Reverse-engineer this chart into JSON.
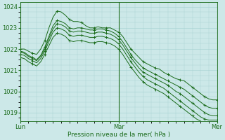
{
  "bg_color": "#cce8e8",
  "grid_color": "#aad4d4",
  "line_color": "#1a6b1a",
  "xlabel": "Pression niveau de la mer( hPa )",
  "xtick_labels": [
    "Lun",
    "Mar",
    "Mer"
  ],
  "xtick_positions": [
    0,
    24,
    48
  ],
  "ytick_values": [
    1019,
    1020,
    1021,
    1022,
    1023,
    1024
  ],
  "ylim": [
    1018.6,
    1024.2
  ],
  "xlim": [
    0,
    48
  ],
  "series": [
    {
      "x": [
        0,
        1,
        2,
        3,
        4,
        5,
        6,
        7,
        8,
        9,
        10,
        11,
        12,
        13,
        14,
        15,
        16,
        17,
        18,
        19,
        20,
        21,
        22,
        23,
        24,
        25,
        26,
        27,
        28,
        29,
        30,
        31,
        32,
        33,
        34,
        35,
        36,
        37,
        38,
        39,
        40,
        41,
        42,
        43,
        44,
        45,
        46,
        47,
        48
      ],
      "y": [
        1022.0,
        1022.0,
        1021.9,
        1021.8,
        1021.75,
        1022.0,
        1022.4,
        1023.0,
        1023.5,
        1023.8,
        1023.75,
        1023.6,
        1023.4,
        1023.3,
        1023.3,
        1023.25,
        1023.1,
        1023.0,
        1023.0,
        1023.05,
        1023.0,
        1023.0,
        1023.0,
        1022.9,
        1022.8,
        1022.6,
        1022.3,
        1022.0,
        1021.8,
        1021.6,
        1021.4,
        1021.3,
        1021.2,
        1021.1,
        1021.05,
        1020.9,
        1020.8,
        1020.7,
        1020.6,
        1020.55,
        1020.5,
        1020.35,
        1020.2,
        1020.05,
        1019.9,
        1019.75,
        1019.65,
        1019.6,
        1019.6
      ]
    },
    {
      "x": [
        0,
        1,
        2,
        3,
        4,
        5,
        6,
        7,
        8,
        9,
        10,
        11,
        12,
        13,
        14,
        15,
        16,
        17,
        18,
        19,
        20,
        21,
        22,
        23,
        24,
        25,
        26,
        27,
        28,
        29,
        30,
        31,
        32,
        33,
        34,
        35,
        36,
        37,
        38,
        39,
        40,
        41,
        42,
        43,
        44,
        45,
        46,
        47,
        48
      ],
      "y": [
        1021.9,
        1021.85,
        1021.7,
        1021.6,
        1021.5,
        1021.7,
        1022.1,
        1022.6,
        1023.1,
        1023.35,
        1023.3,
        1023.2,
        1023.0,
        1022.95,
        1023.0,
        1023.0,
        1022.95,
        1022.9,
        1022.9,
        1022.95,
        1022.95,
        1022.9,
        1022.85,
        1022.75,
        1022.6,
        1022.35,
        1022.05,
        1021.75,
        1021.5,
        1021.3,
        1021.1,
        1021.0,
        1020.9,
        1020.8,
        1020.7,
        1020.6,
        1020.5,
        1020.4,
        1020.3,
        1020.2,
        1020.1,
        1019.95,
        1019.8,
        1019.65,
        1019.5,
        1019.35,
        1019.25,
        1019.2,
        1019.2
      ]
    },
    {
      "x": [
        0,
        1,
        2,
        3,
        4,
        5,
        6,
        7,
        8,
        9,
        10,
        11,
        12,
        13,
        14,
        15,
        16,
        17,
        18,
        19,
        20,
        21,
        22,
        23,
        24,
        25,
        26,
        27,
        28,
        29,
        30,
        31,
        32,
        33,
        34,
        35,
        36,
        37,
        38,
        39,
        40,
        41,
        42,
        43,
        44,
        45,
        46,
        47,
        48
      ],
      "y": [
        1021.85,
        1021.8,
        1021.65,
        1021.55,
        1021.45,
        1021.65,
        1022.0,
        1022.5,
        1022.95,
        1023.2,
        1023.15,
        1023.05,
        1022.85,
        1022.8,
        1022.85,
        1022.85,
        1022.8,
        1022.75,
        1022.75,
        1022.8,
        1022.8,
        1022.75,
        1022.7,
        1022.6,
        1022.45,
        1022.2,
        1021.9,
        1021.6,
        1021.35,
        1021.1,
        1020.9,
        1020.8,
        1020.7,
        1020.6,
        1020.5,
        1020.4,
        1020.3,
        1020.15,
        1020.0,
        1019.9,
        1019.75,
        1019.6,
        1019.45,
        1019.3,
        1019.15,
        1019.0,
        1018.9,
        1018.85,
        1018.85
      ]
    },
    {
      "x": [
        0,
        1,
        2,
        3,
        4,
        5,
        6,
        7,
        8,
        9,
        10,
        11,
        12,
        13,
        14,
        15,
        16,
        17,
        18,
        19,
        20,
        21,
        22,
        23,
        24,
        25,
        26,
        27,
        28,
        29,
        30,
        31,
        32,
        33,
        34,
        35,
        36,
        37,
        38,
        39,
        40,
        41,
        42,
        43,
        44,
        45,
        46,
        47,
        48
      ],
      "y": [
        1021.75,
        1021.7,
        1021.55,
        1021.45,
        1021.35,
        1021.55,
        1021.9,
        1022.35,
        1022.8,
        1023.0,
        1022.95,
        1022.85,
        1022.65,
        1022.6,
        1022.65,
        1022.65,
        1022.6,
        1022.55,
        1022.55,
        1022.6,
        1022.6,
        1022.55,
        1022.5,
        1022.4,
        1022.25,
        1022.0,
        1021.7,
        1021.4,
        1021.15,
        1020.9,
        1020.7,
        1020.55,
        1020.45,
        1020.35,
        1020.25,
        1020.15,
        1020.0,
        1019.85,
        1019.7,
        1019.55,
        1019.4,
        1019.25,
        1019.1,
        1018.95,
        1018.8,
        1018.7,
        1018.65,
        1018.65,
        1018.65
      ]
    },
    {
      "x": [
        0,
        1,
        2,
        3,
        4,
        5,
        6,
        7,
        8,
        9,
        10,
        11,
        12,
        13,
        14,
        15,
        16,
        17,
        18,
        19,
        20,
        21,
        22,
        23,
        24,
        25,
        26,
        27,
        28,
        29,
        30,
        31,
        32,
        33,
        34,
        35,
        36,
        37,
        38,
        39,
        40,
        41,
        42,
        43,
        44,
        45,
        46,
        47,
        48
      ],
      "y": [
        1021.6,
        1021.55,
        1021.4,
        1021.3,
        1021.2,
        1021.4,
        1021.75,
        1022.15,
        1022.55,
        1022.75,
        1022.7,
        1022.6,
        1022.4,
        1022.35,
        1022.4,
        1022.4,
        1022.35,
        1022.3,
        1022.3,
        1022.35,
        1022.35,
        1022.3,
        1022.25,
        1022.15,
        1022.0,
        1021.75,
        1021.45,
        1021.15,
        1020.9,
        1020.65,
        1020.45,
        1020.3,
        1020.2,
        1020.1,
        1020.0,
        1019.9,
        1019.75,
        1019.6,
        1019.45,
        1019.3,
        1019.15,
        1019.0,
        1018.85,
        1018.7,
        1018.6,
        1018.5,
        1018.45,
        1018.45,
        1018.45
      ]
    }
  ]
}
